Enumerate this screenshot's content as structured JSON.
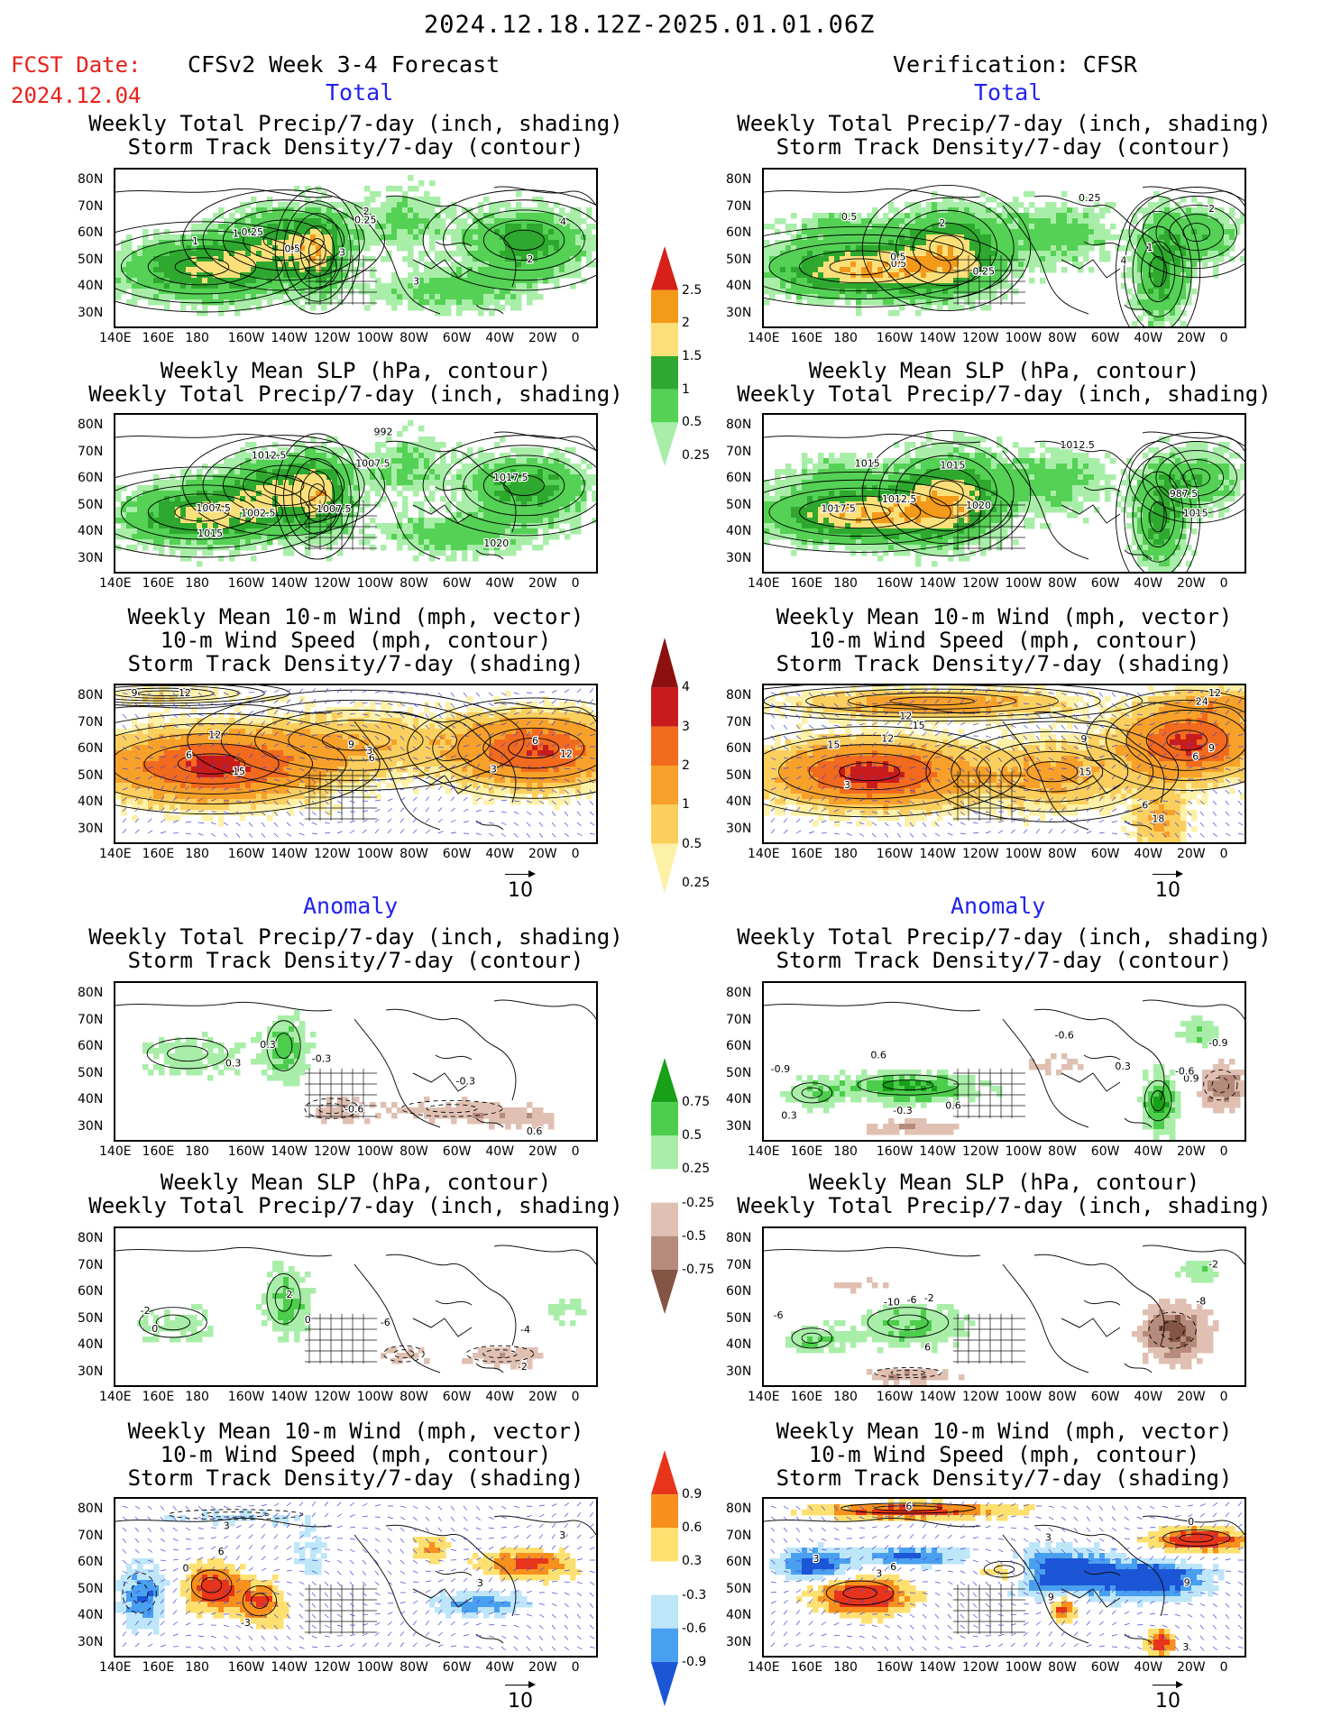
{
  "header": {
    "date_range": "2024.12.18.12Z-2025.01.01.06Z",
    "fcst_label": "FCST Date:",
    "fcst_date": "2024.12.04",
    "left_heading": "CFSv2 Week 3-4 Forecast",
    "right_heading": "Verification: CFSR",
    "total_label": "Total",
    "anomaly_label": "Anomaly"
  },
  "panel_titles": {
    "precip_storm": [
      "Weekly Total Precip/7-day (inch, shading)",
      "Storm Track Density/7-day (contour)"
    ],
    "slp_precip": [
      "Weekly Mean SLP (hPa, contour)",
      "Weekly Total Precip/7-day (inch, shading)"
    ],
    "wind": [
      "Weekly Mean 10-m Wind (mph, vector)",
      "10-m Wind Speed (mph, contour)",
      "Storm Track Density/7-day (shading)"
    ]
  },
  "axes": {
    "lat_labels": [
      "80N",
      "70N",
      "60N",
      "50N",
      "40N",
      "30N"
    ],
    "lon_labels": [
      "140E",
      "160E",
      "180",
      "160W",
      "140W",
      "120W",
      "100W",
      "80W",
      "60W",
      "40W",
      "20W",
      "0"
    ]
  },
  "vector_reference": "10",
  "colorbars": {
    "total_precip": {
      "labels": [
        "2.5",
        "2",
        "1.5",
        "1",
        "0.5",
        "0.25"
      ],
      "colors": [
        "#d8201a",
        "#f39a1a",
        "#fbe07a",
        "#2ea82e",
        "#55d155",
        "#a8eea8"
      ]
    },
    "total_storm": {
      "labels": [
        "4",
        "3",
        "2",
        "1",
        "0.5",
        "0.25"
      ],
      "colors": [
        "#8c1010",
        "#c81c1c",
        "#f26a1e",
        "#f7a12a",
        "#fbcf5e",
        "#fdf1a8"
      ]
    },
    "anom_precip": {
      "labels": [
        "0.75",
        "0.5",
        "0.25",
        "-0.25",
        "-0.5",
        "-0.75"
      ],
      "colors": [
        "#18a018",
        "#4ccd4c",
        "#a8eea8",
        "#ffffff",
        "#e0c0b2",
        "#b58b7b",
        "#845444"
      ]
    },
    "anom_storm": {
      "labels": [
        "0.9",
        "0.6",
        "0.3",
        "-0.3",
        "-0.6",
        "-0.9"
      ],
      "colors": [
        "#e8341a",
        "#f7901c",
        "#fde070",
        "#ffffff",
        "#bde6f8",
        "#4aa0f0",
        "#1a56d6"
      ]
    }
  },
  "panels": [
    {
      "id": "fc-total-precip",
      "col": "forecast",
      "section": "total",
      "title": "precip_storm",
      "contour_labels": [
        "1",
        "0.5",
        "0.25",
        "4",
        "3",
        "2",
        "1",
        "0.25",
        "3",
        "2"
      ]
    },
    {
      "id": "fc-total-slp",
      "col": "forecast",
      "section": "total",
      "title": "slp_precip",
      "contour_labels": [
        "1015",
        "1012.5",
        "1007.5",
        "1017.5",
        "1020",
        "992",
        "1007.5",
        "1002.5",
        "1007.5"
      ]
    },
    {
      "id": "fc-total-wind",
      "col": "forecast",
      "section": "total",
      "title": "wind",
      "contour_labels": [
        "6",
        "12",
        "9",
        "9",
        "15",
        "3",
        "6",
        "12",
        "12",
        "6",
        "3"
      ]
    },
    {
      "id": "vf-total-precip",
      "col": "verification",
      "section": "total",
      "title": "precip_storm",
      "contour_labels": [
        "0.5",
        "0.25",
        "4",
        "2",
        "0.25",
        "0.5",
        "0.5",
        "2",
        "1"
      ]
    },
    {
      "id": "vf-total-slp",
      "col": "verification",
      "section": "total",
      "title": "slp_precip",
      "contour_labels": [
        "1012.5",
        "1015",
        "1015",
        "987.5",
        "1012.5",
        "1015",
        "1017.5",
        "1020"
      ]
    },
    {
      "id": "vf-total-wind",
      "col": "verification",
      "section": "total",
      "title": "wind",
      "contour_labels": [
        "3",
        "6",
        "12",
        "15",
        "18",
        "24",
        "12",
        "9",
        "15",
        "9",
        "6",
        "12",
        "15"
      ]
    },
    {
      "id": "fc-anom-precip",
      "col": "forecast",
      "section": "anomaly",
      "title": "precip_storm",
      "contour_labels": [
        "0.3",
        "0.3",
        "-0.3",
        "-0.6",
        "0.6",
        "-0.3"
      ]
    },
    {
      "id": "fc-anom-slp",
      "col": "forecast",
      "section": "anomaly",
      "title": "slp_precip",
      "contour_labels": [
        "0",
        "-2",
        "-2",
        "-6",
        "-4",
        "2",
        "0"
      ]
    },
    {
      "id": "fc-anom-wind",
      "col": "forecast",
      "section": "anomaly",
      "title": "wind",
      "contour_labels": [
        "6",
        "-3",
        "0",
        "3",
        "3",
        "3"
      ]
    },
    {
      "id": "vf-anom-precip",
      "col": "verification",
      "section": "anomaly",
      "title": "precip_storm",
      "contour_labels": [
        "0.6",
        "0.3",
        "0.3",
        "0.9",
        "0.6",
        "-0.6",
        "-0.9",
        "-0.3",
        "-0.9",
        "-0.6"
      ]
    },
    {
      "id": "vf-anom-slp",
      "col": "verification",
      "section": "anomaly",
      "title": "slp_precip",
      "contour_labels": [
        "-2",
        "-6",
        "-8",
        "6",
        "-10",
        "-2",
        "-6"
      ]
    },
    {
      "id": "vf-anom-wind",
      "col": "verification",
      "section": "anomaly",
      "title": "wind",
      "contour_labels": [
        "3",
        "3",
        "6",
        "0",
        "3",
        "9",
        "9",
        "6",
        "3"
      ]
    }
  ]
}
